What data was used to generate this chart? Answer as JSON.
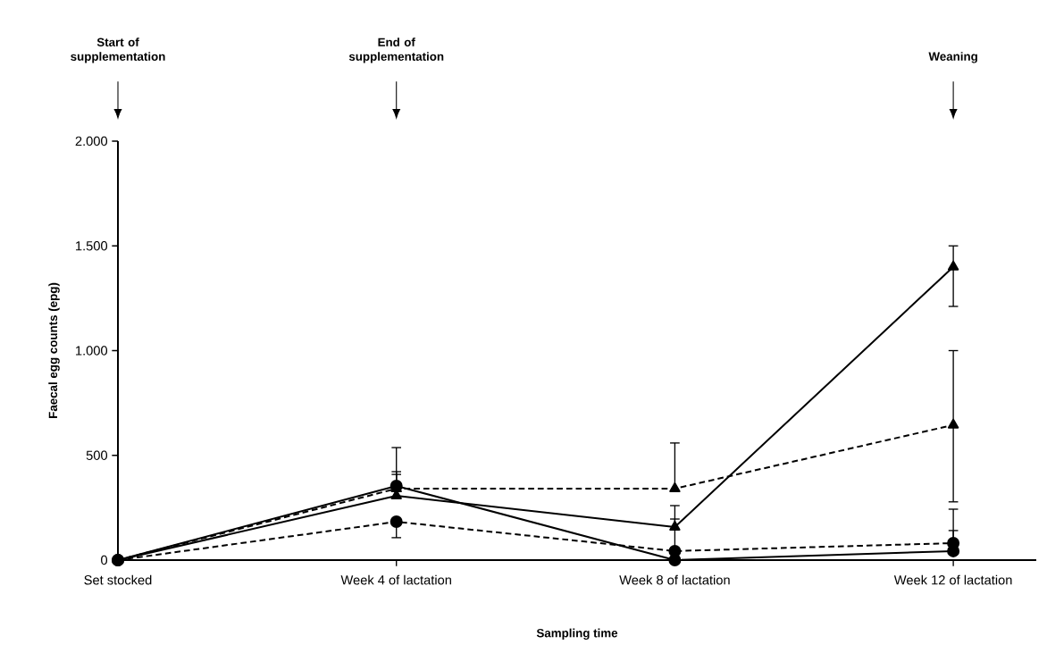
{
  "chart_data": {
    "type": "line",
    "xlabel": "Sampling time",
    "ylabel": "Faecal egg counts (epg)",
    "categories": [
      "Set stocked",
      "Week 4 of lactation",
      "Week 8 of lactation",
      "Week 12 of lactation"
    ],
    "ylim": [
      0,
      2000
    ],
    "yticks": [
      0,
      500,
      {
        "value": 1000,
        "label": "1.000"
      },
      {
        "value": 1500,
        "label": "1.500"
      },
      {
        "value": 2000,
        "label": "2.000"
      }
    ],
    "grid": false,
    "series": [
      {
        "color": "#000000",
        "marker": "triangle",
        "line_style": "solid",
        "values": [
          0,
          307,
          158,
          1400
        ],
        "errors": [
          null,
          [
            307,
            409
          ],
          [
            158,
            260
          ],
          [
            1211,
            1500
          ]
        ]
      },
      {
        "color": "#000000",
        "marker": "triangle",
        "line_style": "dashed",
        "values": [
          0,
          341,
          341,
          645
        ],
        "errors": [
          null,
          [
            341,
            422
          ],
          [
            341,
            559
          ],
          [
            278,
            1000
          ]
        ]
      },
      {
        "color": "#000000",
        "marker": "circle",
        "line_style": "solid",
        "values": [
          0,
          354,
          0,
          43
        ],
        "errors": [
          null,
          [
            354,
            537
          ],
          null,
          [
            43,
            141
          ]
        ]
      },
      {
        "color": "#000000",
        "marker": "circle",
        "line_style": "dashed",
        "values": [
          0,
          183,
          43,
          81
        ],
        "errors": [
          null,
          [
            107,
            183
          ],
          [
            43,
            196
          ],
          [
            81,
            243
          ]
        ]
      }
    ],
    "annotations": [
      "Start of supplementation",
      "End of supplementation",
      "Weaning"
    ]
  }
}
